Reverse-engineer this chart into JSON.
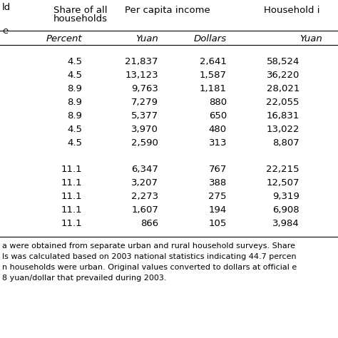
{
  "top_left": "ld",
  "top_left_e": "e",
  "header1": [
    "Share of all\nhouseholds",
    "Per capita income",
    "Household i"
  ],
  "header2": [
    "Percent",
    "Yuan",
    "Dollars",
    "Yuan"
  ],
  "urban_rows": [
    [
      "4.5",
      "21,837",
      "2,641",
      "58,524"
    ],
    [
      "4.5",
      "13,123",
      "1,587",
      "36,220"
    ],
    [
      "8.9",
      "9,763",
      "1,181",
      "28,021"
    ],
    [
      "8.9",
      "7,279",
      "880",
      "22,055"
    ],
    [
      "8.9",
      "5,377",
      "650",
      "16,831"
    ],
    [
      "4.5",
      "3,970",
      "480",
      "13,022"
    ],
    [
      "4.5",
      "2,590",
      "313",
      "8,807"
    ]
  ],
  "rural_rows": [
    [
      "11.1",
      "6,347",
      "767",
      "22,215"
    ],
    [
      "11.1",
      "3,207",
      "388",
      "12,507"
    ],
    [
      "11.1",
      "2,273",
      "275",
      "9,319"
    ],
    [
      "11.1",
      "1,607",
      "194",
      "6,908"
    ],
    [
      "11.1",
      "866",
      "105",
      "3,984"
    ]
  ],
  "footnotes": [
    "a were obtained from separate urban and rural household surveys. Share",
    "ls was calculated based on 2003 national statistics indicating 44.7 percen",
    "n households were urban. Original values converted to dollars at official e",
    "8 yuan/dollar that prevailed during 2003."
  ],
  "bg": "#ffffff",
  "fg": "#000000",
  "fs": 9.5,
  "fs_note": 8.0
}
